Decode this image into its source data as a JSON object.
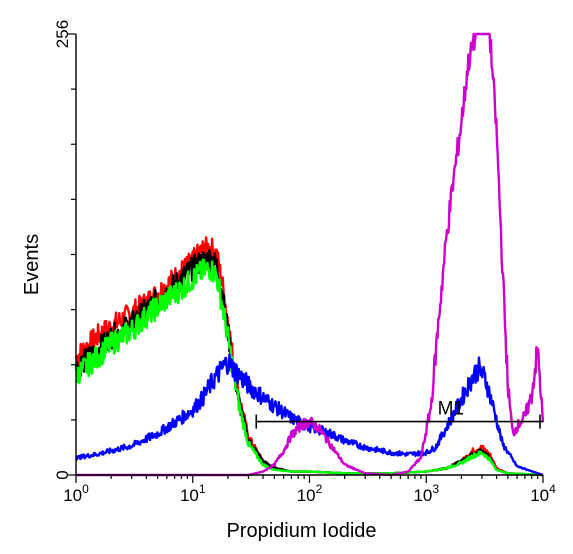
{
  "chart_data": {
    "type": "line",
    "title": "",
    "xlabel": "Propidium Iodide",
    "ylabel": "Events",
    "x_scale": "log",
    "xlim": [
      1,
      10000
    ],
    "ylim": [
      0,
      256
    ],
    "x_ticks": [
      {
        "value": 1,
        "base": "10",
        "exp": "0"
      },
      {
        "value": 10,
        "base": "10",
        "exp": "1"
      },
      {
        "value": 100,
        "base": "10",
        "exp": "2"
      },
      {
        "value": 1000,
        "base": "10",
        "exp": "3"
      },
      {
        "value": 10000,
        "base": "10",
        "exp": "4"
      }
    ],
    "y_ticks": [
      {
        "value": 0,
        "label": "0"
      },
      {
        "value": 256,
        "label": "256"
      }
    ],
    "grid": false,
    "legend": "none",
    "gate": {
      "label": "M1",
      "x_start": 35,
      "x_end": 10000,
      "y": 31
    },
    "series": [
      {
        "color": "#ff0000",
        "x": [
          1,
          1.5,
          2,
          3,
          4,
          6,
          8,
          10,
          12,
          14,
          16,
          18,
          20,
          22,
          25,
          30,
          40,
          50,
          70,
          100,
          200,
          500,
          1000,
          1500,
          2000,
          2500,
          3000,
          3500,
          4000,
          5000,
          10000
        ],
        "y": [
          68,
          80,
          86,
          94,
          100,
          110,
          118,
          124,
          130,
          132,
          128,
          110,
          90,
          68,
          45,
          22,
          8,
          4,
          2,
          2,
          1,
          1,
          2,
          4,
          8,
          14,
          16,
          12,
          4,
          1,
          0
        ]
      },
      {
        "color": "#000000",
        "x": [
          1,
          1.5,
          2,
          3,
          4,
          6,
          8,
          10,
          12,
          14,
          16,
          18,
          20,
          22,
          25,
          30,
          40,
          50,
          70,
          100,
          200,
          500,
          1000,
          1500,
          2000,
          2500,
          3000,
          3500,
          4000,
          5000,
          10000
        ],
        "y": [
          62,
          72,
          80,
          88,
          96,
          106,
          114,
          120,
          124,
          126,
          122,
          104,
          84,
          64,
          42,
          20,
          8,
          4,
          2,
          2,
          1,
          1,
          2,
          4,
          8,
          12,
          14,
          10,
          3,
          1,
          0
        ]
      },
      {
        "color": "#00ff00",
        "x": [
          1,
          1.5,
          2,
          3,
          4,
          6,
          8,
          10,
          12,
          14,
          16,
          18,
          20,
          22,
          25,
          30,
          40,
          50,
          70,
          100,
          200,
          500,
          1000,
          1500,
          2000,
          2500,
          3000,
          3500,
          4000,
          5000,
          10000
        ],
        "y": [
          58,
          68,
          76,
          84,
          92,
          102,
          108,
          114,
          118,
          120,
          116,
          98,
          80,
          62,
          40,
          18,
          6,
          3,
          2,
          2,
          1,
          1,
          2,
          4,
          7,
          11,
          13,
          9,
          3,
          1,
          0
        ]
      },
      {
        "color": "#0000ff",
        "x": [
          1,
          1.5,
          2,
          3,
          5,
          8,
          10,
          12,
          15,
          18,
          20,
          22,
          25,
          30,
          40,
          50,
          70,
          100,
          150,
          200,
          300,
          500,
          700,
          1000,
          1200,
          1500,
          2000,
          2500,
          2800,
          3200,
          3800,
          4500,
          6000,
          10000
        ],
        "y": [
          10,
          12,
          14,
          17,
          24,
          33,
          38,
          44,
          55,
          62,
          66,
          62,
          58,
          52,
          45,
          40,
          33,
          28,
          24,
          20,
          16,
          13,
          12,
          13,
          16,
          28,
          44,
          57,
          62,
          56,
          38,
          18,
          5,
          0
        ]
      },
      {
        "color": "#cc00cc",
        "x": [
          1,
          30,
          40,
          50,
          60,
          70,
          85,
          100,
          120,
          150,
          200,
          300,
          500,
          700,
          900,
          1100,
          1300,
          1500,
          1700,
          2000,
          2300,
          2700,
          3000,
          3500,
          4000,
          4500,
          5000,
          5500,
          6000,
          7000,
          8000,
          9000,
          10000
        ],
        "y": [
          0,
          0,
          2,
          6,
          14,
          23,
          29,
          31,
          27,
          18,
          6,
          1,
          0,
          2,
          10,
          40,
          96,
          140,
          170,
          205,
          240,
          256,
          256,
          256,
          200,
          120,
          52,
          24,
          28,
          34,
          46,
          74,
          30
        ]
      }
    ]
  }
}
